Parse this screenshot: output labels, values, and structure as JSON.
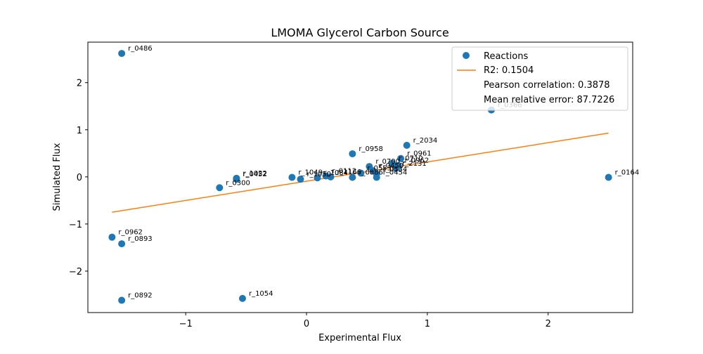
{
  "chart_data": {
    "type": "scatter",
    "title": "LMOMA Glycerol Carbon Source",
    "xlabel": "Experimental Flux",
    "ylabel": "Simulated Flux",
    "xlim": [
      -1.81,
      2.7
    ],
    "ylim": [
      -2.88,
      2.86
    ],
    "xticks": [
      -1,
      0,
      1,
      2
    ],
    "yticks": [
      -2,
      -1,
      0,
      1,
      2
    ],
    "xtick_labels": [
      "−1",
      "0",
      "1",
      "2"
    ],
    "ytick_labels": [
      "−2",
      "−1",
      "0",
      "1",
      "2"
    ],
    "grid": false,
    "legend_position": "top-right",
    "colors": {
      "points": "#1f77b4",
      "fit_line": "#ff7f0e"
    },
    "series": [
      {
        "name": "Reactions",
        "marker": "circle",
        "points": [
          {
            "x": -1.53,
            "y": 2.62,
            "label": "r_0486"
          },
          {
            "x": 1.53,
            "y": 1.42,
            "label": "r_0366"
          },
          {
            "x": 0.83,
            "y": 0.67,
            "label": "r_2034"
          },
          {
            "x": 0.38,
            "y": 0.49,
            "label": "r_0958"
          },
          {
            "x": 0.78,
            "y": 0.39,
            "label": "r_0961"
          },
          {
            "x": 0.71,
            "y": 0.29,
            "label": "r_0710"
          },
          {
            "x": 0.76,
            "y": 0.24,
            "label": "r_0962"
          },
          {
            "x": 0.74,
            "y": 0.18,
            "label": "r_2131"
          },
          {
            "x": 0.52,
            "y": 0.22,
            "label": "r_0700"
          },
          {
            "x": 0.55,
            "y": 0.13,
            "label": "r_0450"
          },
          {
            "x": 0.58,
            "y": 0.06,
            "label": "r_0534"
          },
          {
            "x": 0.58,
            "y": -0.01,
            "label": "r_0454"
          },
          {
            "x": 0.38,
            "y": -0.01,
            "label": "r_0886"
          },
          {
            "x": 0.45,
            "y": 0.08,
            "label": "r_0553"
          },
          {
            "x": 0.16,
            "y": 0.02,
            "label": "r_0112"
          },
          {
            "x": 0.2,
            "y": 0.0,
            "label": "r_1166"
          },
          {
            "x": 0.09,
            "y": -0.02,
            "label": "r_1084"
          },
          {
            "x": -0.05,
            "y": -0.05,
            "label": "r_1050"
          },
          {
            "x": -0.12,
            "y": -0.01,
            "label": "r_1049"
          },
          {
            "x": -0.58,
            "y": -0.03,
            "label": "r_1022"
          },
          {
            "x": -0.58,
            "y": -0.05,
            "label": "r_0452"
          },
          {
            "x": -0.72,
            "y": -0.23,
            "label": "r_0300"
          },
          {
            "x": 2.5,
            "y": -0.01,
            "label": "r_0164"
          },
          {
            "x": -1.61,
            "y": -1.28,
            "label": "r_0962"
          },
          {
            "x": -1.53,
            "y": -1.42,
            "label": "r_0893"
          },
          {
            "x": -1.53,
            "y": -2.62,
            "label": "r_0892"
          },
          {
            "x": -0.53,
            "y": -2.58,
            "label": "r_1054"
          }
        ]
      },
      {
        "name": "R2: 0.1504",
        "type": "line",
        "points": [
          {
            "x": -1.61,
            "y": -0.75
          },
          {
            "x": 2.5,
            "y": 0.93
          }
        ]
      }
    ],
    "legend": {
      "entries": [
        {
          "label": "Reactions",
          "marker": "circle"
        },
        {
          "label": "R2: 0.1504",
          "marker": "line"
        },
        {
          "label": "Pearson correlation: 0.3878",
          "marker": "none"
        },
        {
          "label": "Mean relative error: 87.7226",
          "marker": "none"
        }
      ]
    }
  }
}
